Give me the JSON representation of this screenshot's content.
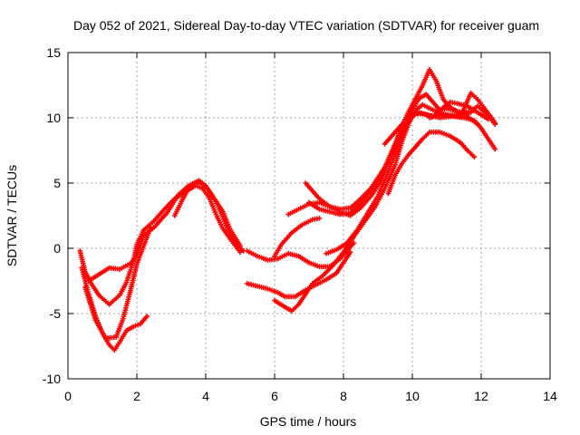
{
  "chart_data": {
    "type": "scatter",
    "title": "Day 052 of 2021, Sidereal Day-to-day VTEC variation (SDTVAR) for receiver guam",
    "xlabel": "GPS time / hours",
    "ylabel": "SDTVAR / TECUs",
    "xlim": [
      0,
      14
    ],
    "ylim": [
      -10,
      15
    ],
    "xticks": [
      "0",
      "2",
      "4",
      "6",
      "8",
      "10",
      "12",
      "14"
    ],
    "yticks": [
      "-10",
      "-5",
      "0",
      "5",
      "10",
      "15"
    ],
    "grid": true,
    "marker": "plus",
    "color": "#ff0000",
    "series": [
      {
        "points": [
          [
            0.35,
            -0.2
          ],
          [
            0.5,
            -1.8
          ],
          [
            0.7,
            -2.8
          ],
          [
            0.9,
            -3.6
          ],
          [
            1.2,
            -4.3
          ],
          [
            1.5,
            -3.6
          ],
          [
            1.7,
            -2.6
          ],
          [
            1.9,
            -1.0
          ],
          [
            2.0,
            0.3
          ],
          [
            2.2,
            1.4
          ],
          [
            2.5,
            2.1
          ],
          [
            2.8,
            3.0
          ],
          [
            3.1,
            3.8
          ],
          [
            3.4,
            4.3
          ],
          [
            3.7,
            4.8
          ],
          [
            3.9,
            4.6
          ],
          [
            4.1,
            3.9
          ],
          [
            4.3,
            2.6
          ],
          [
            4.5,
            1.5
          ],
          [
            4.8,
            0.4
          ],
          [
            5.0,
            -0.3
          ]
        ]
      },
      {
        "points": [
          [
            0.4,
            -1.5
          ],
          [
            0.6,
            -3.5
          ],
          [
            0.8,
            -5.2
          ],
          [
            1.0,
            -6.5
          ],
          [
            1.2,
            -7.4
          ],
          [
            1.35,
            -7.8
          ],
          [
            1.5,
            -7.2
          ],
          [
            1.7,
            -6.3
          ],
          [
            1.9,
            -6.0
          ],
          [
            2.1,
            -5.8
          ],
          [
            2.3,
            -5.2
          ]
        ]
      },
      {
        "points": [
          [
            0.6,
            -2.5
          ],
          [
            0.9,
            -2.0
          ],
          [
            1.2,
            -1.5
          ],
          [
            1.5,
            -1.6
          ],
          [
            1.8,
            -1.2
          ],
          [
            2.0,
            -0.6
          ],
          [
            2.2,
            1.0
          ],
          [
            2.5,
            1.6
          ],
          [
            2.9,
            2.8
          ],
          [
            3.2,
            4.1
          ],
          [
            3.5,
            4.8
          ],
          [
            3.8,
            5.2
          ],
          [
            4.0,
            4.8
          ],
          [
            4.2,
            4.0
          ],
          [
            4.5,
            2.8
          ],
          [
            4.7,
            1.5
          ],
          [
            5.0,
            0.2
          ]
        ]
      },
      {
        "points": [
          [
            0.5,
            -3.0
          ],
          [
            0.8,
            -5.5
          ],
          [
            1.1,
            -6.9
          ],
          [
            1.4,
            -6.8
          ],
          [
            1.6,
            -5.4
          ],
          [
            1.8,
            -3.4
          ],
          [
            2.0,
            -1.2
          ],
          [
            2.2,
            0.2
          ],
          [
            2.4,
            1.6
          ]
        ]
      },
      {
        "points": [
          [
            3.1,
            2.5
          ],
          [
            3.3,
            3.6
          ],
          [
            3.5,
            4.6
          ],
          [
            3.7,
            5.0
          ],
          [
            3.9,
            4.9
          ],
          [
            4.1,
            4.4
          ],
          [
            4.3,
            3.6
          ],
          [
            4.5,
            2.4
          ],
          [
            4.7,
            1.1
          ],
          [
            4.9,
            0.3
          ],
          [
            5.1,
            -0.2
          ]
        ]
      },
      {
        "points": [
          [
            5.2,
            -0.2
          ],
          [
            5.5,
            -0.6
          ],
          [
            5.8,
            -0.9
          ],
          [
            6.1,
            -0.8
          ],
          [
            6.4,
            -0.4
          ],
          [
            6.7,
            -0.6
          ],
          [
            7.0,
            -1.1
          ],
          [
            7.3,
            -1.4
          ],
          [
            7.6,
            -1.4
          ],
          [
            7.9,
            -0.8
          ],
          [
            8.1,
            -0.2
          ],
          [
            8.3,
            0.4
          ]
        ]
      },
      {
        "points": [
          [
            5.2,
            -2.7
          ],
          [
            5.5,
            -2.9
          ],
          [
            5.8,
            -3.1
          ],
          [
            6.1,
            -3.4
          ],
          [
            6.3,
            -3.7
          ],
          [
            6.6,
            -3.7
          ],
          [
            6.9,
            -3.2
          ],
          [
            7.2,
            -2.8
          ],
          [
            7.5,
            -2.4
          ],
          [
            7.8,
            -1.9
          ],
          [
            8.0,
            -1.1
          ],
          [
            8.2,
            -0.3
          ]
        ]
      },
      {
        "points": [
          [
            6.0,
            -4.0
          ],
          [
            6.3,
            -4.5
          ],
          [
            6.5,
            -4.8
          ],
          [
            6.7,
            -4.3
          ],
          [
            6.9,
            -3.5
          ],
          [
            7.1,
            -2.7
          ],
          [
            7.4,
            -2.1
          ],
          [
            7.7,
            -1.3
          ],
          [
            8.0,
            -0.3
          ],
          [
            8.3,
            0.9
          ],
          [
            8.6,
            2.0
          ],
          [
            8.9,
            3.1
          ],
          [
            9.2,
            4.6
          ],
          [
            9.5,
            6.4
          ],
          [
            9.7,
            8.2
          ],
          [
            9.9,
            9.6
          ],
          [
            10.1,
            10.6
          ],
          [
            10.3,
            11.0
          ],
          [
            10.6,
            10.6
          ],
          [
            10.9,
            10.3
          ],
          [
            11.2,
            10.1
          ],
          [
            11.5,
            10.0
          ],
          [
            11.8,
            9.8
          ],
          [
            12.0,
            9.2
          ],
          [
            12.2,
            8.4
          ],
          [
            12.4,
            7.6
          ]
        ]
      },
      {
        "points": [
          [
            6.0,
            -0.6
          ],
          [
            6.2,
            0.3
          ],
          [
            6.5,
            1.2
          ],
          [
            6.8,
            1.8
          ],
          [
            7.1,
            2.2
          ],
          [
            7.3,
            2.3
          ]
        ]
      },
      {
        "points": [
          [
            6.4,
            2.6
          ],
          [
            6.7,
            3.0
          ],
          [
            7.0,
            3.4
          ],
          [
            7.3,
            3.5
          ],
          [
            7.6,
            3.2
          ],
          [
            7.9,
            3.0
          ],
          [
            8.2,
            3.1
          ],
          [
            8.5,
            3.8
          ],
          [
            8.8,
            4.6
          ],
          [
            9.0,
            5.4
          ],
          [
            9.2,
            6.2
          ],
          [
            9.4,
            7.4
          ],
          [
            9.6,
            8.6
          ],
          [
            9.8,
            9.5
          ],
          [
            10.0,
            10.6
          ],
          [
            10.2,
            11.5
          ],
          [
            10.4,
            11.8
          ],
          [
            10.6,
            11.2
          ],
          [
            10.8,
            10.6
          ],
          [
            11.0,
            10.7
          ],
          [
            11.3,
            10.5
          ],
          [
            11.6,
            10.1
          ],
          [
            11.9,
            9.5
          ]
        ]
      },
      {
        "points": [
          [
            6.9,
            5.0
          ],
          [
            7.1,
            4.4
          ],
          [
            7.3,
            3.8
          ],
          [
            7.6,
            3.2
          ],
          [
            7.9,
            2.8
          ],
          [
            8.2,
            2.5
          ],
          [
            8.5,
            3.1
          ],
          [
            8.8,
            4.0
          ],
          [
            9.1,
            5.2
          ],
          [
            9.3,
            6.6
          ],
          [
            9.5,
            8.0
          ],
          [
            9.7,
            9.4
          ],
          [
            9.9,
            10.5
          ],
          [
            10.1,
            11.5
          ],
          [
            10.3,
            12.5
          ],
          [
            10.5,
            13.7
          ],
          [
            10.7,
            12.8
          ],
          [
            10.9,
            11.4
          ],
          [
            11.1,
            10.8
          ],
          [
            11.3,
            10.5
          ],
          [
            11.5,
            10.4
          ],
          [
            11.7,
            10.5
          ],
          [
            11.9,
            10.9
          ],
          [
            12.2,
            10.2
          ],
          [
            12.4,
            9.5
          ]
        ]
      },
      {
        "points": [
          [
            7.0,
            3.5
          ],
          [
            7.3,
            3.0
          ],
          [
            7.6,
            2.8
          ],
          [
            7.9,
            2.6
          ],
          [
            8.2,
            2.7
          ],
          [
            8.5,
            3.5
          ],
          [
            8.8,
            4.5
          ],
          [
            9.1,
            5.5
          ],
          [
            9.3,
            6.6
          ],
          [
            9.5,
            7.8
          ],
          [
            9.7,
            8.9
          ],
          [
            9.9,
            9.8
          ],
          [
            10.1,
            10.3
          ],
          [
            10.3,
            10.3
          ],
          [
            10.6,
            10.1
          ],
          [
            10.9,
            10.8
          ],
          [
            11.1,
            11.2
          ],
          [
            11.3,
            11.1
          ],
          [
            11.6,
            10.9
          ],
          [
            11.9,
            10.4
          ],
          [
            12.2,
            9.9
          ]
        ]
      },
      {
        "points": [
          [
            7.5,
            -0.4
          ],
          [
            7.8,
            -0.1
          ],
          [
            8.1,
            0.4
          ],
          [
            8.4,
            1.4
          ],
          [
            8.7,
            2.7
          ],
          [
            9.0,
            4.0
          ],
          [
            9.2,
            5.2
          ],
          [
            9.4,
            6.6
          ],
          [
            9.6,
            7.9
          ],
          [
            9.8,
            9.2
          ],
          [
            10.0,
            10.2
          ],
          [
            10.2,
            10.4
          ],
          [
            10.5,
            10.2
          ],
          [
            10.8,
            10.0
          ],
          [
            11.1,
            10.1
          ],
          [
            11.4,
            10.3
          ],
          [
            11.7,
            10.4
          ]
        ]
      },
      {
        "points": [
          [
            9.2,
            8.0
          ],
          [
            9.4,
            8.6
          ],
          [
            9.6,
            9.2
          ],
          [
            9.8,
            9.8
          ],
          [
            10.0,
            10.3
          ]
        ]
      },
      {
        "points": [
          [
            9.3,
            4.2
          ],
          [
            9.5,
            5.6
          ],
          [
            9.7,
            6.5
          ],
          [
            9.9,
            7.2
          ],
          [
            10.1,
            7.8
          ],
          [
            10.3,
            8.4
          ],
          [
            10.5,
            8.9
          ],
          [
            10.8,
            8.9
          ],
          [
            11.1,
            8.6
          ],
          [
            11.4,
            8.1
          ],
          [
            11.6,
            7.5
          ],
          [
            11.8,
            7.0
          ]
        ]
      },
      {
        "points": [
          [
            10.5,
            10.0
          ],
          [
            10.8,
            10.2
          ],
          [
            11.1,
            10.2
          ],
          [
            11.4,
            10.1
          ],
          [
            11.7,
            11.9
          ],
          [
            11.9,
            11.4
          ],
          [
            12.1,
            10.7
          ],
          [
            12.3,
            10.0
          ],
          [
            12.4,
            9.6
          ]
        ]
      }
    ]
  }
}
